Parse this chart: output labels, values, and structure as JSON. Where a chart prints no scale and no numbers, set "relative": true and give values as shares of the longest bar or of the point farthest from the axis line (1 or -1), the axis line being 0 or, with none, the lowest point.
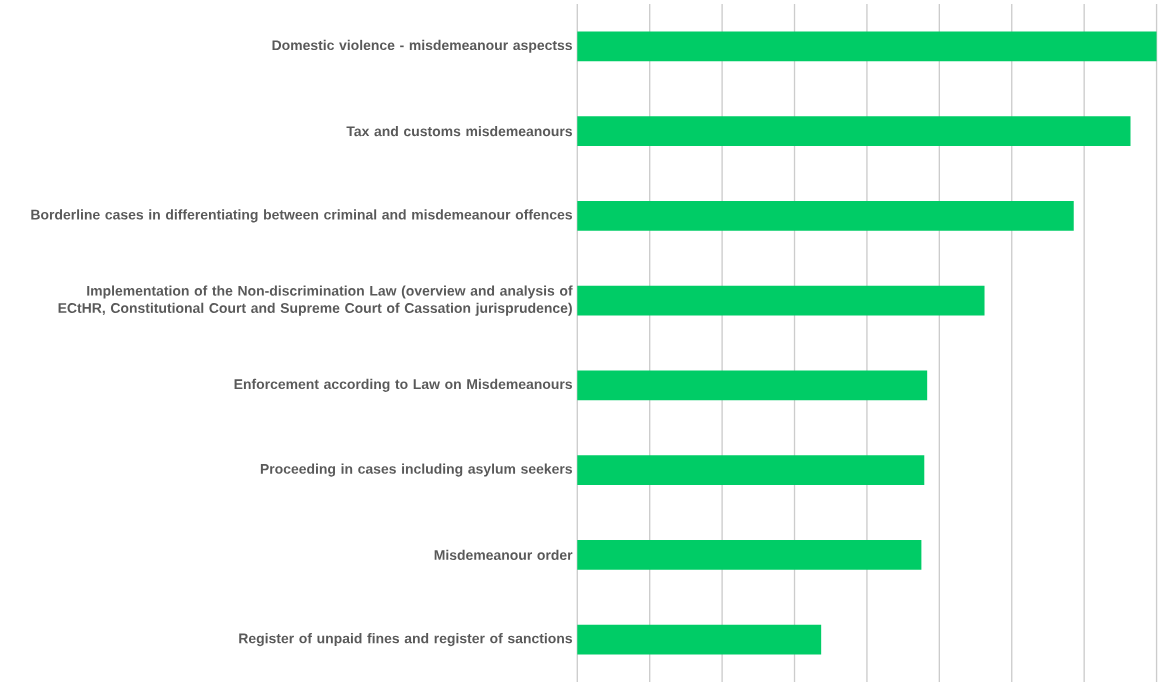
{
  "chart_data": {
    "type": "bar",
    "orientation": "horizontal",
    "relative": true,
    "grid": "x",
    "color": "#00cc66",
    "categories": [
      "Domestic violence - misdemeanour aspectss",
      "Tax and customs misdemeanours",
      "Borderline cases in differentiating between criminal and misdemeanour offences",
      "Implementation of the Non-discrimination Law (overview and analysis of ECtHR, Constitutional Court and Supreme Court of Cassation jurisprudence)",
      "Enforcement according to Law on Misdemeanours",
      "Proceeding in cases including asylum seekers",
      "Misdemeanour order",
      "Register of unpaid fines and register of sanctions"
    ],
    "values": [
      1,
      0.955,
      0.857,
      0.703,
      0.604,
      0.599,
      0.594,
      0.421
    ]
  }
}
